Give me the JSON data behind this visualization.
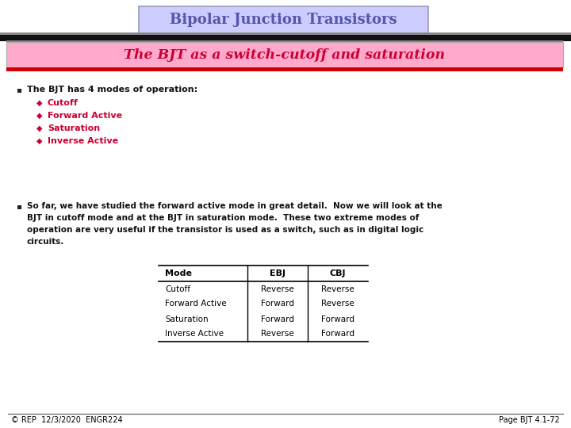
{
  "title": "Bipolar Junction Transistors",
  "subtitle": "The BJT as a switch-cutoff and saturation",
  "title_box_facecolor": "#ccccff",
  "title_box_edgecolor": "#9999bb",
  "title_text_color": "#5555aa",
  "subtitle_box_color": "#ffaacc",
  "subtitle_text_color": "#cc0033",
  "bg_color": "#ffffff",
  "bullet1_header": "The BJT has 4 modes of operation:",
  "bullet1_items": [
    "Cutoff",
    "Forward Active",
    "Saturation",
    "Inverse Active"
  ],
  "bullet_item_color": "#cc0033",
  "bullet2_lines": [
    "So far, we have studied the forward active mode in great detail.  Now we will look at the",
    "BJT in cutoff mode and at the BJT in saturation mode.  These two extreme modes of",
    "operation are very useful if the transistor is used as a switch, such as in digital logic",
    "circuits."
  ],
  "table_headers": [
    "Mode",
    "EBJ",
    "CBJ"
  ],
  "table_rows": [
    [
      "Cutoff",
      "Reverse",
      "Reverse"
    ],
    [
      "Forward Active",
      "Forward",
      "Reverse"
    ],
    [
      "Saturation",
      "Forward",
      "Forward"
    ],
    [
      "Inverse Active",
      "Reverse",
      "Forward"
    ]
  ],
  "footer_left": "© REP  12/3/2020  ENGR224",
  "footer_right": "Page BJT 4.1-72"
}
